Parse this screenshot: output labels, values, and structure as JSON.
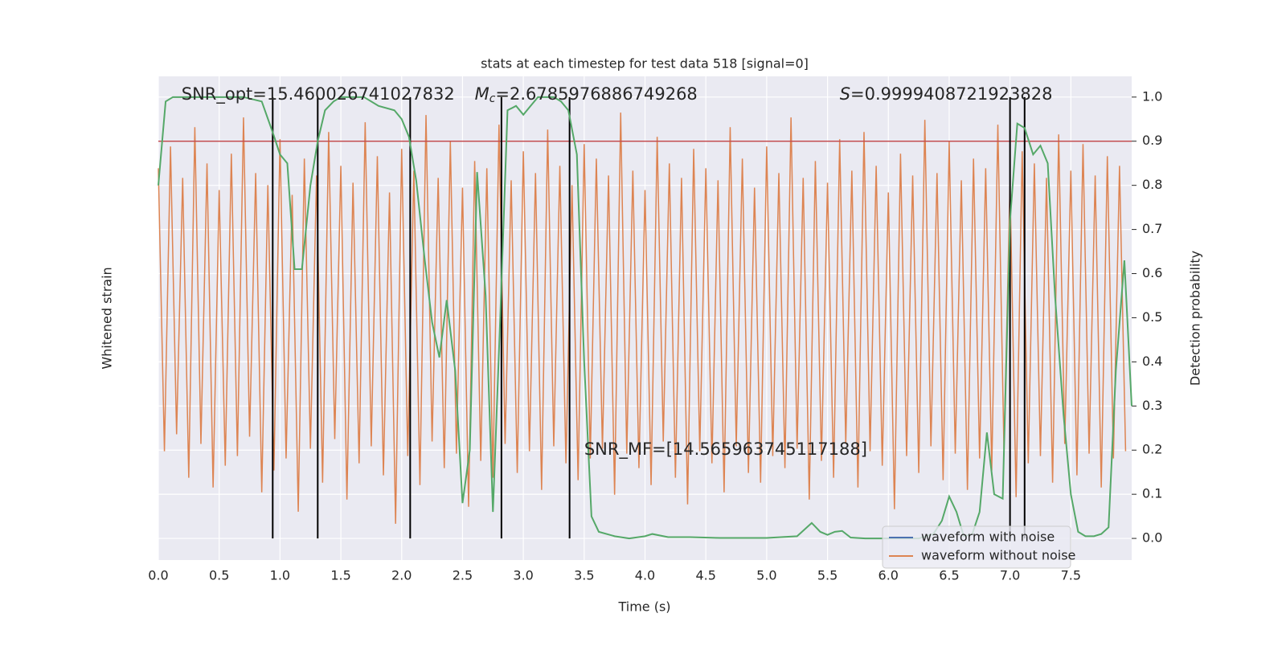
{
  "chart_data": {
    "type": "line",
    "title": "stats at each timestep for test data 518 [signal=0]",
    "xlabel": "Time (s)",
    "ylabel": "Whitened strain",
    "y2label": "Detection probability",
    "xlim": [
      0,
      8.0
    ],
    "ylim": [
      -1,
      1
    ],
    "y2lim": [
      -0.049,
      1.047
    ],
    "xticks": [
      {
        "value": 0,
        "label": "0.0"
      },
      0.5,
      {
        "value": 1,
        "label": "1.0"
      },
      1.5,
      {
        "value": 2,
        "label": "2.0"
      },
      2.5,
      {
        "value": 3,
        "label": "3.0"
      },
      3.5,
      {
        "value": 4,
        "label": "4.0"
      },
      4.5,
      {
        "value": 5,
        "label": "5.0"
      },
      5.5,
      {
        "value": 6,
        "label": "6.0"
      },
      6.5,
      {
        "value": 7,
        "label": "7.0"
      },
      7.5
    ],
    "y2ticks": [
      {
        "value": 0,
        "label": "0.0"
      },
      0.1,
      0.2,
      0.3,
      0.4,
      0.5,
      0.6,
      0.7,
      0.8,
      0.9,
      {
        "value": 1,
        "label": "1.0"
      }
    ],
    "grid": true,
    "series": [
      {
        "color": "#dd8452",
        "x": [
          0,
          0.05,
          0.1,
          0.15,
          0.2,
          0.25,
          0.3,
          0.35,
          0.4,
          0.45,
          0.5,
          0.55,
          0.6,
          0.65,
          0.7,
          0.75,
          0.8,
          0.85,
          0.9,
          0.95,
          1,
          1.05,
          1.1,
          1.15,
          1.2,
          1.25,
          1.3,
          1.35,
          1.4,
          1.45,
          1.5,
          1.55,
          1.6,
          1.65,
          1.7,
          1.75,
          1.8,
          1.85,
          1.9,
          1.95,
          2,
          2.05,
          2.1,
          2.15,
          2.2,
          2.25,
          2.3,
          2.35,
          2.4,
          2.45,
          2.5,
          2.55,
          2.6,
          2.65,
          2.7,
          2.75,
          2.8,
          2.85,
          2.9,
          2.95,
          3,
          3.05,
          3.1,
          3.15,
          3.2,
          3.25,
          3.3,
          3.35,
          3.4,
          3.45,
          3.5,
          3.55,
          3.6,
          3.65,
          3.7,
          3.75,
          3.8,
          3.85,
          3.9,
          3.95,
          4,
          4.05,
          4.1,
          4.15,
          4.2,
          4.25,
          4.3,
          4.35,
          4.4,
          4.45,
          4.5,
          4.55,
          4.6,
          4.65,
          4.7,
          4.75,
          4.8,
          4.85,
          4.9,
          4.95,
          5,
          5.05,
          5.1,
          5.15,
          5.2,
          5.25,
          5.3,
          5.35,
          5.4,
          5.45,
          5.5,
          5.55,
          5.6,
          5.65,
          5.7,
          5.75,
          5.8,
          5.85,
          5.9,
          5.95,
          6,
          6.05,
          6.1,
          6.15,
          6.2,
          6.25,
          6.3,
          6.35,
          6.4,
          6.45,
          6.5,
          6.55,
          6.6,
          6.65,
          6.7,
          6.75,
          6.8,
          6.85,
          6.9,
          6.95,
          7,
          7.05,
          7.1,
          7.15,
          7.2,
          7.25,
          7.3,
          7.35,
          7.4,
          7.45,
          7.5,
          7.55,
          7.6,
          7.65,
          7.7,
          7.75,
          7.8,
          7.85,
          7.9,
          7.95
        ],
        "values": [
          0.62,
          -0.55,
          0.71,
          -0.48,
          0.58,
          -0.66,
          0.79,
          -0.52,
          0.64,
          -0.7,
          0.53,
          -0.61,
          0.68,
          -0.57,
          0.83,
          -0.49,
          0.6,
          -0.72,
          0.55,
          -0.63,
          0.74,
          -0.58,
          0.51,
          -0.8,
          0.66,
          -0.54,
          0.59,
          -0.68,
          0.77,
          -0.5,
          0.63,
          -0.75,
          0.56,
          -0.6,
          0.81,
          -0.53,
          0.67,
          -0.65,
          0.52,
          -0.85,
          0.7,
          -0.57,
          0.61,
          -0.69,
          0.84,
          -0.51,
          0.58,
          -0.62,
          0.73,
          -0.56,
          0.54,
          -0.78,
          0.65,
          -0.59,
          0.62,
          -0.66,
          0.8,
          -0.52,
          0.57,
          -0.64,
          0.69,
          -0.55,
          0.6,
          -0.71,
          0.78,
          -0.53,
          0.63,
          -0.6,
          0.55,
          -0.67,
          0.72,
          -0.58,
          0.66,
          -0.54,
          0.59,
          -0.73,
          0.85,
          -0.56,
          0.61,
          -0.62,
          0.53,
          -0.69,
          0.75,
          -0.51,
          0.64,
          -0.66,
          0.58,
          -0.77,
          0.7,
          -0.55,
          0.62,
          -0.6,
          0.57,
          -0.72,
          0.79,
          -0.53,
          0.66,
          -0.64,
          0.54,
          -0.68,
          0.71,
          -0.57,
          0.6,
          -0.62,
          0.83,
          -0.54,
          0.58,
          -0.75,
          0.65,
          -0.59,
          0.56,
          -0.66,
          0.74,
          -0.52,
          0.61,
          -0.7,
          0.77,
          -0.55,
          0.63,
          -0.61,
          0.52,
          -0.79,
          0.68,
          -0.57,
          0.59,
          -0.64,
          0.82,
          -0.53,
          0.6,
          -0.67,
          0.73,
          -0.56,
          0.57,
          -0.71,
          0.66,
          -0.58,
          0.62,
          -0.63,
          0.8,
          -0.54,
          0.55,
          -0.74,
          0.69,
          -0.6,
          0.64,
          -0.57,
          0.58,
          -0.68,
          0.76,
          -0.52,
          0.61,
          -0.65,
          0.72,
          -0.56,
          0.59,
          -0.7,
          0.67,
          -0.58,
          0.63,
          -0.55
        ]
      },
      {
        "color": "#55a868",
        "axis": "y2",
        "x": [
          0,
          0.06,
          0.12,
          0.3,
          0.5,
          0.7,
          0.85,
          0.94,
          1.0,
          1.06,
          1.12,
          1.18,
          1.25,
          1.31,
          1.37,
          1.44,
          1.5,
          1.69,
          1.81,
          1.94,
          2.0,
          2.06,
          2.12,
          2.19,
          2.25,
          2.31,
          2.37,
          2.44,
          2.5,
          2.56,
          2.62,
          2.69,
          2.75,
          2.81,
          2.87,
          2.94,
          3.0,
          3.06,
          3.12,
          3.25,
          3.31,
          3.37,
          3.44,
          3.5,
          3.56,
          3.62,
          3.75,
          3.87,
          4.0,
          4.06,
          4.19,
          4.37,
          4.62,
          5.0,
          5.25,
          5.37,
          5.44,
          5.5,
          5.56,
          5.62,
          5.69,
          5.81,
          6.0,
          6.25,
          6.37,
          6.44,
          6.5,
          6.56,
          6.62,
          6.69,
          6.75,
          6.81,
          6.87,
          6.94,
          7.0,
          7.06,
          7.12,
          7.19,
          7.25,
          7.31,
          7.37,
          7.44,
          7.5,
          7.56,
          7.62,
          7.69,
          7.75,
          7.81,
          7.87,
          7.94,
          8.0
        ],
        "values": [
          0.8,
          0.99,
          1.0,
          1.0,
          1.0,
          1.0,
          0.99,
          0.92,
          0.87,
          0.85,
          0.61,
          0.61,
          0.8,
          0.9,
          0.97,
          0.99,
          1.0,
          1.0,
          0.98,
          0.97,
          0.95,
          0.91,
          0.81,
          0.63,
          0.49,
          0.41,
          0.54,
          0.38,
          0.08,
          0.2,
          0.83,
          0.55,
          0.06,
          0.5,
          0.97,
          0.98,
          0.96,
          0.98,
          1.0,
          1.0,
          0.99,
          0.97,
          0.87,
          0.4,
          0.05,
          0.015,
          0.005,
          0.0,
          0.005,
          0.01,
          0.003,
          0.003,
          0.001,
          0.001,
          0.005,
          0.035,
          0.015,
          0.008,
          0.015,
          0.017,
          0.002,
          0.0,
          0.0,
          0.0,
          0.01,
          0.04,
          0.095,
          0.06,
          0.005,
          0.01,
          0.06,
          0.24,
          0.1,
          0.09,
          0.72,
          0.94,
          0.93,
          0.87,
          0.89,
          0.85,
          0.55,
          0.28,
          0.1,
          0.015,
          0.005,
          0.005,
          0.01,
          0.025,
          0.38,
          0.63,
          0.3
        ]
      }
    ],
    "threshold": {
      "value": 0.9,
      "color": "#c44e52"
    },
    "vlines": {
      "x": [
        0.94,
        1.31,
        2.07,
        2.82,
        3.38,
        7.0,
        7.12
      ],
      "ymin": 0,
      "ymax": 1,
      "color": "#000000"
    },
    "annotations": [
      {
        "text": "SNR_opt=15.460026741027832",
        "x": 0.19,
        "y": 1.005
      },
      {
        "symbol": "M",
        "subscript": "c",
        "text": "=2.6785976886749268",
        "x": 2.6,
        "y": 1.005
      },
      {
        "symbol": "S",
        "text": "=0.9999408721923828",
        "x": 5.6,
        "y": 1.005
      },
      {
        "text": "SNR_MF=[14.565963745117188]",
        "x": 3.5,
        "y": 0.2
      }
    ],
    "legend": {
      "position": "lower right",
      "entries": [
        {
          "name": "waveform with noise",
          "color": "#4c72b0"
        },
        {
          "name": "waveform without noise",
          "color": "#dd8452"
        }
      ]
    }
  }
}
